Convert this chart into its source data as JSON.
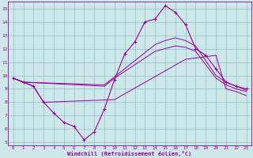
{
  "xlabel": "Windchill (Refroidissement éolien,°C)",
  "xlim": [
    -0.5,
    23.5
  ],
  "ylim": [
    4.8,
    15.5
  ],
  "xticks": [
    0,
    1,
    2,
    3,
    4,
    5,
    6,
    7,
    8,
    9,
    10,
    11,
    12,
    13,
    14,
    15,
    16,
    17,
    18,
    19,
    20,
    21,
    22,
    23
  ],
  "yticks": [
    5,
    6,
    7,
    8,
    9,
    10,
    11,
    12,
    13,
    14,
    15
  ],
  "bg_color": "#cce8e8",
  "line_color": "#990099",
  "grid_color": "#99bbcc",
  "series1_x": [
    0,
    1,
    2,
    3,
    4,
    5,
    6,
    7,
    8,
    9,
    10,
    11,
    12,
    13,
    14,
    15,
    16,
    17,
    18,
    19,
    20,
    21,
    22,
    23
  ],
  "series1_y": [
    9.8,
    9.5,
    9.2,
    8.0,
    7.2,
    6.5,
    6.2,
    5.2,
    5.8,
    7.5,
    9.7,
    11.6,
    12.5,
    14.0,
    14.2,
    15.2,
    14.7,
    13.8,
    12.0,
    11.5,
    10.5,
    9.5,
    9.2,
    9.0
  ],
  "series2_x": [
    0,
    2,
    3,
    10,
    17,
    20,
    21,
    22,
    23
  ],
  "series2_y": [
    9.8,
    9.2,
    8.0,
    8.2,
    11.2,
    11.5,
    9.0,
    8.8,
    8.5
  ],
  "series3_x": [
    0,
    1,
    9,
    10,
    11,
    12,
    13,
    14,
    15,
    16,
    17,
    18,
    20,
    21,
    22,
    23
  ],
  "series3_y": [
    9.8,
    9.5,
    9.2,
    9.8,
    10.3,
    10.8,
    11.3,
    11.8,
    12.0,
    12.2,
    12.1,
    11.8,
    9.8,
    9.3,
    9.0,
    8.8
  ],
  "series4_x": [
    0,
    1,
    9,
    10,
    11,
    12,
    13,
    14,
    15,
    16,
    17,
    18,
    20,
    21,
    22,
    23
  ],
  "series4_y": [
    9.8,
    9.5,
    9.3,
    9.9,
    10.5,
    11.1,
    11.7,
    12.3,
    12.6,
    12.8,
    12.6,
    12.2,
    10.0,
    9.5,
    9.2,
    8.9
  ]
}
